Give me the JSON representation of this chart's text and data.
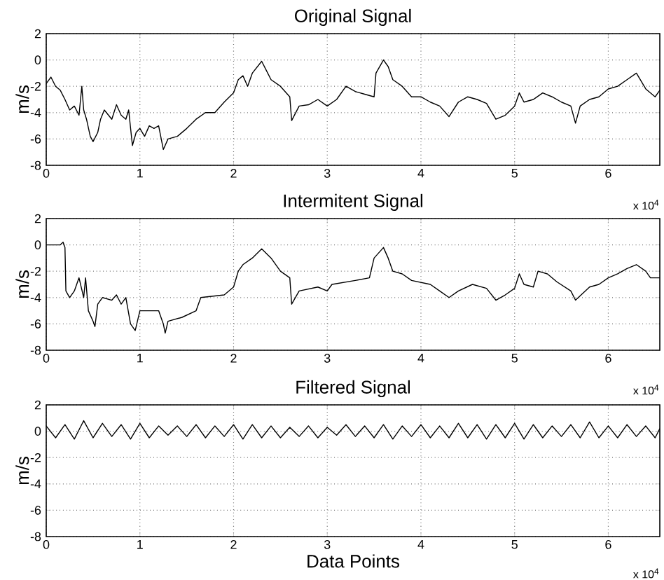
{
  "chart_data": [
    {
      "type": "line",
      "title": "Original Signal",
      "ylabel": "m/s",
      "annotations": [
        "x 10$^{4}$"
      ],
      "xlim": [
        0,
        6.55
      ],
      "ylim": [
        -8,
        2
      ],
      "xticks": [
        0,
        1,
        2,
        3,
        4,
        5,
        6
      ],
      "yticks": [
        -8,
        -6,
        -4,
        -2,
        0,
        2
      ],
      "grid": true,
      "x": [
        0,
        0.05,
        0.1,
        0.15,
        0.2,
        0.25,
        0.3,
        0.35,
        0.38,
        0.4,
        0.43,
        0.47,
        0.5,
        0.55,
        0.58,
        0.62,
        0.7,
        0.75,
        0.8,
        0.85,
        0.88,
        0.92,
        0.96,
        1.0,
        1.05,
        1.1,
        1.15,
        1.2,
        1.25,
        1.3,
        1.4,
        1.5,
        1.6,
        1.7,
        1.8,
        1.9,
        2.0,
        2.05,
        2.1,
        2.15,
        2.2,
        2.3,
        2.35,
        2.4,
        2.5,
        2.6,
        2.62,
        2.7,
        2.8,
        2.9,
        3.0,
        3.1,
        3.2,
        3.3,
        3.4,
        3.5,
        3.52,
        3.6,
        3.65,
        3.7,
        3.8,
        3.9,
        4.0,
        4.1,
        4.2,
        4.3,
        4.4,
        4.5,
        4.6,
        4.7,
        4.8,
        4.9,
        5.0,
        5.05,
        5.1,
        5.2,
        5.3,
        5.4,
        5.5,
        5.6,
        5.65,
        5.7,
        5.8,
        5.9,
        6.0,
        6.1,
        6.2,
        6.3,
        6.35,
        6.4,
        6.5,
        6.55
      ],
      "series": [
        {
          "color": "#000000",
          "values": [
            -1.8,
            -1.3,
            -2.0,
            -2.3,
            -3.0,
            -3.8,
            -3.5,
            -4.2,
            -2.0,
            -3.8,
            -4.5,
            -5.8,
            -6.2,
            -5.5,
            -4.5,
            -3.8,
            -4.5,
            -3.4,
            -4.2,
            -4.5,
            -3.8,
            -6.5,
            -5.5,
            -5.2,
            -5.8,
            -5.0,
            -5.2,
            -5.0,
            -6.8,
            -6.0,
            -5.8,
            -5.2,
            -4.5,
            -4.0,
            -4.0,
            -3.2,
            -2.5,
            -1.5,
            -1.2,
            -2.0,
            -1.0,
            -0.1,
            -0.8,
            -1.5,
            -2.0,
            -2.8,
            -4.6,
            -3.5,
            -3.4,
            -3.0,
            -3.5,
            -3.0,
            -2.0,
            -2.4,
            -2.6,
            -2.8,
            -1.0,
            0.0,
            -0.5,
            -1.5,
            -2.0,
            -2.8,
            -2.8,
            -3.2,
            -3.5,
            -4.3,
            -3.2,
            -2.8,
            -3.0,
            -3.3,
            -4.5,
            -4.2,
            -3.5,
            -2.5,
            -3.2,
            -3.0,
            -2.5,
            -2.8,
            -3.2,
            -3.5,
            -4.8,
            -3.5,
            -3.0,
            -2.8,
            -2.2,
            -2.0,
            -1.5,
            -1.0,
            -1.6,
            -2.2,
            -2.8,
            -2.3
          ]
        }
      ]
    },
    {
      "type": "line",
      "title": "Intermitent Signal",
      "ylabel": "m/s",
      "annotations": [
        "x 10$^{4}$"
      ],
      "xlim": [
        0,
        6.55
      ],
      "ylim": [
        -8,
        2
      ],
      "xticks": [
        0,
        1,
        2,
        3,
        4,
        5,
        6
      ],
      "yticks": [
        -8,
        -6,
        -4,
        -2,
        0,
        2
      ],
      "grid": true,
      "x": [
        0,
        0.15,
        0.18,
        0.2,
        0.21,
        0.25,
        0.3,
        0.35,
        0.4,
        0.42,
        0.45,
        0.5,
        0.52,
        0.55,
        0.6,
        0.7,
        0.75,
        0.8,
        0.85,
        0.9,
        0.95,
        1.0,
        1.2,
        1.25,
        1.27,
        1.3,
        1.45,
        1.6,
        1.65,
        1.9,
        2.0,
        2.05,
        2.1,
        2.2,
        2.3,
        2.4,
        2.5,
        2.6,
        2.62,
        2.7,
        2.9,
        3.0,
        3.05,
        3.3,
        3.45,
        3.5,
        3.6,
        3.65,
        3.7,
        3.8,
        3.9,
        4.1,
        4.2,
        4.3,
        4.4,
        4.55,
        4.7,
        4.8,
        4.9,
        5.0,
        5.05,
        5.1,
        5.2,
        5.25,
        5.35,
        5.45,
        5.6,
        5.65,
        5.8,
        5.9,
        6.0,
        6.1,
        6.2,
        6.3,
        6.4,
        6.45,
        6.55
      ],
      "series": [
        {
          "color": "#000000",
          "values": [
            0,
            0,
            0.2,
            -0.2,
            -3.5,
            -4.0,
            -3.5,
            -2.5,
            -4.0,
            -2.5,
            -5.0,
            -5.8,
            -6.2,
            -4.5,
            -4.0,
            -4.2,
            -3.8,
            -4.5,
            -4.0,
            -6.0,
            -6.5,
            -5.0,
            -5.0,
            -6.0,
            -6.7,
            -5.8,
            -5.5,
            -5.0,
            -4.0,
            -3.8,
            -3.2,
            -2.0,
            -1.5,
            -1.0,
            -0.3,
            -1.0,
            -2.0,
            -2.5,
            -4.5,
            -3.5,
            -3.2,
            -3.5,
            -3.0,
            -2.7,
            -2.5,
            -1.0,
            -0.2,
            -1.0,
            -2.0,
            -2.2,
            -2.7,
            -3.0,
            -3.5,
            -4.0,
            -3.5,
            -3.0,
            -3.3,
            -4.2,
            -3.8,
            -3.3,
            -2.2,
            -3.0,
            -3.2,
            -2.0,
            -2.2,
            -2.8,
            -3.5,
            -4.2,
            -3.2,
            -3.0,
            -2.5,
            -2.2,
            -1.8,
            -1.5,
            -2.0,
            -2.5,
            -2.5
          ]
        }
      ]
    },
    {
      "type": "line",
      "title": "Filtered Signal",
      "xlabel": "Data Points",
      "ylabel": "m/s",
      "annotations": [
        "x 10$^{4}$"
      ],
      "xlim": [
        0,
        6.55
      ],
      "ylim": [
        -8,
        2
      ],
      "xticks": [
        0,
        1,
        2,
        3,
        4,
        5,
        6
      ],
      "yticks": [
        -8,
        -6,
        -4,
        -2,
        0,
        2
      ],
      "grid": true,
      "x": [
        0,
        0.1,
        0.2,
        0.3,
        0.4,
        0.5,
        0.6,
        0.7,
        0.8,
        0.9,
        1.0,
        1.1,
        1.2,
        1.3,
        1.4,
        1.5,
        1.6,
        1.7,
        1.8,
        1.9,
        2.0,
        2.1,
        2.2,
        2.3,
        2.4,
        2.5,
        2.6,
        2.7,
        2.8,
        2.9,
        3.0,
        3.1,
        3.2,
        3.3,
        3.4,
        3.5,
        3.6,
        3.7,
        3.8,
        3.9,
        4.0,
        4.1,
        4.2,
        4.3,
        4.4,
        4.5,
        4.6,
        4.7,
        4.8,
        4.9,
        5.0,
        5.1,
        5.2,
        5.3,
        5.4,
        5.5,
        5.6,
        5.7,
        5.8,
        5.9,
        6.0,
        6.1,
        6.2,
        6.3,
        6.4,
        6.5,
        6.55
      ],
      "series": [
        {
          "color": "#000000",
          "values": [
            0.4,
            -0.5,
            0.5,
            -0.6,
            0.8,
            -0.5,
            0.6,
            -0.4,
            0.5,
            -0.6,
            0.6,
            -0.5,
            0.4,
            -0.3,
            0.4,
            -0.4,
            0.5,
            -0.5,
            0.4,
            -0.4,
            0.5,
            -0.6,
            0.5,
            -0.5,
            0.4,
            -0.5,
            0.3,
            -0.4,
            0.4,
            -0.5,
            0.3,
            -0.3,
            0.5,
            -0.4,
            0.4,
            -0.5,
            0.5,
            -0.6,
            0.4,
            -0.4,
            0.5,
            -0.5,
            0.4,
            -0.5,
            0.6,
            -0.5,
            0.5,
            -0.6,
            0.5,
            -0.5,
            0.6,
            -0.6,
            0.5,
            -0.5,
            0.4,
            -0.4,
            0.5,
            -0.5,
            0.7,
            -0.5,
            0.4,
            -0.5,
            0.5,
            -0.4,
            0.4,
            -0.5,
            0.2
          ]
        }
      ]
    }
  ]
}
